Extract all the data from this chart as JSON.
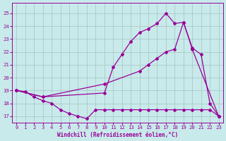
{
  "xlabel": "Windchill (Refroidissement éolien,°C)",
  "bg_color": "#c8eaea",
  "line_color": "#990099",
  "grid_color": "#a0b8b8",
  "xlim": [
    -0.5,
    23.5
  ],
  "ylim": [
    16.5,
    25.8
  ],
  "yticks": [
    17,
    18,
    19,
    20,
    21,
    22,
    23,
    24,
    25
  ],
  "xticks": [
    0,
    1,
    2,
    3,
    4,
    5,
    6,
    7,
    8,
    9,
    10,
    11,
    12,
    13,
    14,
    15,
    16,
    17,
    18,
    19,
    20,
    21,
    22,
    23
  ],
  "line1_x": [
    0,
    1,
    2,
    3,
    4,
    5,
    6,
    7,
    8,
    9,
    10,
    11,
    12,
    13,
    14,
    15,
    16,
    17,
    18,
    19,
    20,
    21,
    22,
    23
  ],
  "line1_y": [
    19.0,
    18.9,
    18.5,
    18.2,
    18.0,
    17.5,
    17.2,
    17.0,
    16.8,
    17.5,
    17.5,
    17.5,
    17.5,
    17.5,
    17.5,
    17.5,
    17.5,
    17.5,
    17.5,
    17.5,
    17.5,
    17.5,
    17.5,
    17.0
  ],
  "line2_x": [
    0,
    3,
    10,
    11,
    12,
    13,
    14,
    15,
    16,
    17,
    18,
    19,
    20,
    23
  ],
  "line2_y": [
    19.0,
    18.5,
    18.8,
    20.8,
    21.8,
    22.8,
    23.5,
    23.8,
    24.2,
    25.0,
    24.2,
    24.3,
    22.2,
    17.0
  ],
  "line3_x": [
    0,
    3,
    10,
    14,
    15,
    16,
    17,
    18,
    19,
    20,
    21,
    22,
    23
  ],
  "line3_y": [
    19.0,
    18.5,
    19.5,
    20.5,
    21.0,
    21.5,
    22.0,
    22.2,
    24.3,
    22.3,
    21.8,
    18.0,
    17.0
  ]
}
